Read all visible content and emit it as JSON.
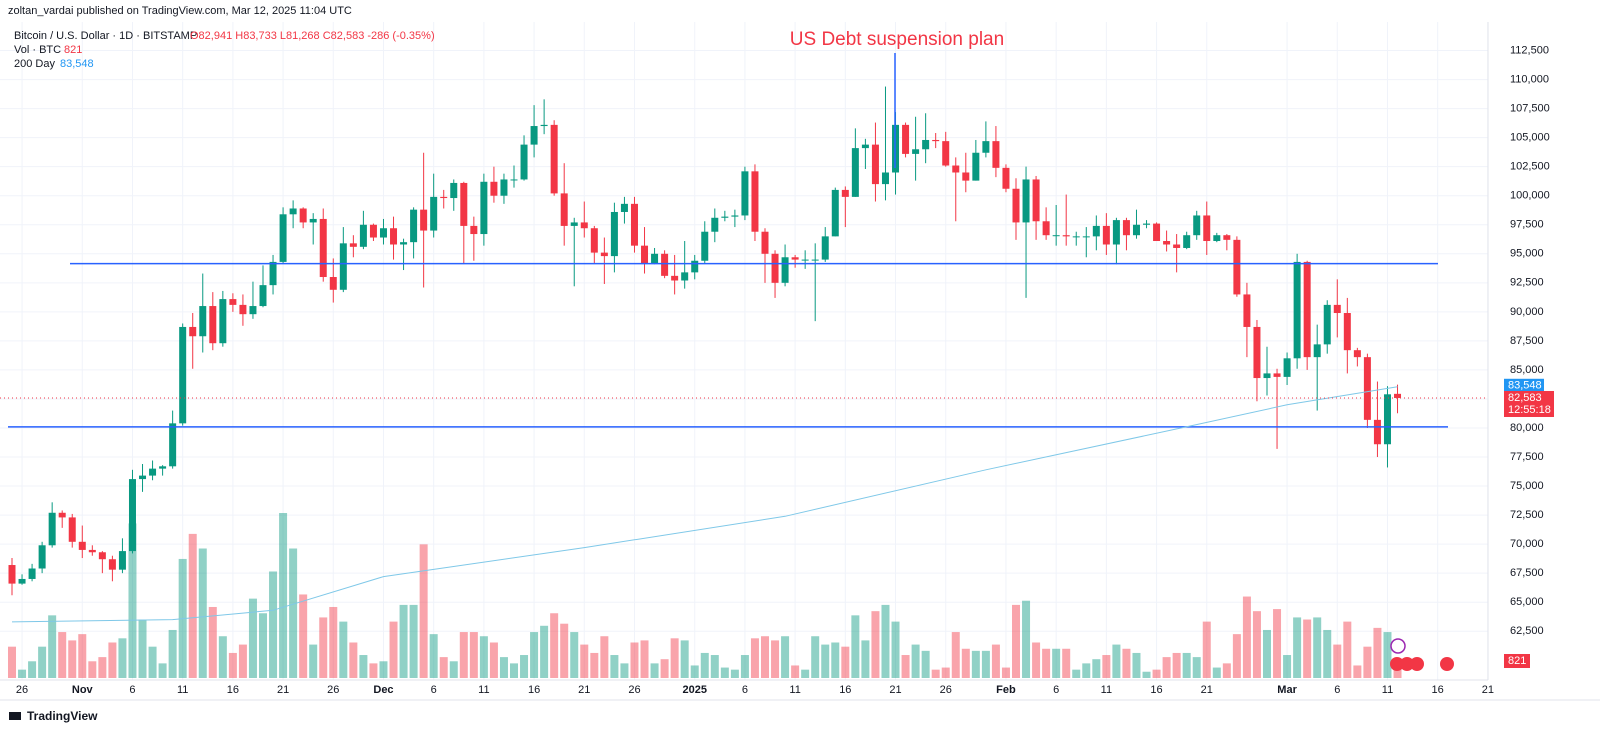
{
  "header": "zoltan_vardai published on TradingView.com, Mar 12, 2025 11:04 UTC",
  "footer": "TradingView",
  "chart_data": {
    "type": "candlestick",
    "title": "Bitcoin / U.S. Dollar · 1D · BITSTAMP",
    "ohlc_legend": "O82,941 H83,733 L81,268 C82,583 -286 (-0.35%)",
    "annotation": "US Debt suspension plan",
    "up_color": "#089981",
    "down_color": "#f23645",
    "grid": true,
    "x": [
      "2024-10-25",
      "2024-10-26",
      "2024-10-27",
      "2024-10-28",
      "2024-10-29",
      "2024-10-30",
      "2024-10-31",
      "2024-11-01",
      "2024-11-02",
      "2024-11-03",
      "2024-11-04",
      "2024-11-05",
      "2024-11-06",
      "2024-11-07",
      "2024-11-08",
      "2024-11-09",
      "2024-11-10",
      "2024-11-11",
      "2024-11-12",
      "2024-11-13",
      "2024-11-14",
      "2024-11-15",
      "2024-11-16",
      "2024-11-17",
      "2024-11-18",
      "2024-11-19",
      "2024-11-20",
      "2024-11-21",
      "2024-11-22",
      "2024-11-23",
      "2024-11-24",
      "2024-11-25",
      "2024-11-26",
      "2024-11-27",
      "2024-11-28",
      "2024-11-29",
      "2024-11-30",
      "2024-12-01",
      "2024-12-02",
      "2024-12-03",
      "2024-12-04",
      "2024-12-05",
      "2024-12-06",
      "2024-12-07",
      "2024-12-08",
      "2024-12-09",
      "2024-12-10",
      "2024-12-11",
      "2024-12-12",
      "2024-12-13",
      "2024-12-14",
      "2024-12-15",
      "2024-12-16",
      "2024-12-17",
      "2024-12-18",
      "2024-12-19",
      "2024-12-20",
      "2024-12-21",
      "2024-12-22",
      "2024-12-23",
      "2024-12-24",
      "2024-12-25",
      "2024-12-26",
      "2024-12-27",
      "2024-12-28",
      "2024-12-29",
      "2024-12-30",
      "2024-12-31",
      "2025-01-01",
      "2025-01-02",
      "2025-01-03",
      "2025-01-04",
      "2025-01-05",
      "2025-01-06",
      "2025-01-07",
      "2025-01-08",
      "2025-01-09",
      "2025-01-10",
      "2025-01-11",
      "2025-01-12",
      "2025-01-13",
      "2025-01-14",
      "2025-01-15",
      "2025-01-16",
      "2025-01-17",
      "2025-01-18",
      "2025-01-19",
      "2025-01-20",
      "2025-01-21",
      "2025-01-22",
      "2025-01-23",
      "2025-01-24",
      "2025-01-25",
      "2025-01-26",
      "2025-01-27",
      "2025-01-28",
      "2025-01-29",
      "2025-01-30",
      "2025-01-31",
      "2025-02-01",
      "2025-02-02",
      "2025-02-03",
      "2025-02-04",
      "2025-02-05",
      "2025-02-06",
      "2025-02-07",
      "2025-02-08",
      "2025-02-09",
      "2025-02-10",
      "2025-02-11",
      "2025-02-12",
      "2025-02-13",
      "2025-02-14",
      "2025-02-15",
      "2025-02-16",
      "2025-02-17",
      "2025-02-18",
      "2025-02-19",
      "2025-02-20",
      "2025-02-21",
      "2025-02-22",
      "2025-02-23",
      "2025-02-24",
      "2025-02-25",
      "2025-02-26",
      "2025-02-27",
      "2025-02-28",
      "2025-03-01",
      "2025-03-02",
      "2025-03-03",
      "2025-03-04",
      "2025-03-05",
      "2025-03-06",
      "2025-03-07",
      "2025-03-08",
      "2025-03-09",
      "2025-03-10",
      "2025-03-11",
      "2025-03-12"
    ],
    "ohlc": [
      [
        68200,
        68800,
        65600,
        66600
      ],
      [
        66600,
        67400,
        66500,
        67000
      ],
      [
        67000,
        68300,
        66800,
        67900
      ],
      [
        67900,
        70200,
        67500,
        69900
      ],
      [
        69900,
        73600,
        69700,
        72700
      ],
      [
        72700,
        72900,
        71400,
        72300
      ],
      [
        72300,
        72600,
        69700,
        70200
      ],
      [
        70200,
        71600,
        68800,
        69500
      ],
      [
        69500,
        69900,
        69000,
        69300
      ],
      [
        69300,
        69400,
        67500,
        68700
      ],
      [
        68700,
        69000,
        66800,
        67800
      ],
      [
        67800,
        70500,
        67500,
        69400
      ],
      [
        69400,
        76400,
        69200,
        75600
      ],
      [
        75600,
        76900,
        74500,
        75900
      ],
      [
        75900,
        77200,
        75500,
        76500
      ],
      [
        76500,
        76800,
        75900,
        76700
      ],
      [
        76700,
        81500,
        76500,
        80400
      ],
      [
        80400,
        89000,
        80200,
        88700
      ],
      [
        88700,
        89900,
        85100,
        87900
      ],
      [
        87900,
        93300,
        86500,
        90500
      ],
      [
        90500,
        91700,
        86700,
        87300
      ],
      [
        87300,
        91800,
        87000,
        91100
      ],
      [
        91100,
        91600,
        90000,
        90600
      ],
      [
        90600,
        91500,
        88800,
        89800
      ],
      [
        89800,
        92600,
        89400,
        90500
      ],
      [
        90500,
        94000,
        90400,
        92300
      ],
      [
        92300,
        94900,
        91500,
        94300
      ],
      [
        94300,
        99000,
        94200,
        98400
      ],
      [
        98400,
        99600,
        97200,
        98900
      ],
      [
        98900,
        99000,
        97200,
        97700
      ],
      [
        97700,
        98500,
        95800,
        98000
      ],
      [
        98000,
        98900,
        92600,
        93000
      ],
      [
        93000,
        94600,
        90800,
        91900
      ],
      [
        91900,
        97300,
        91700,
        95900
      ],
      [
        95900,
        96600,
        94700,
        95600
      ],
      [
        95600,
        98700,
        95400,
        97500
      ],
      [
        97500,
        97600,
        96100,
        96400
      ],
      [
        96400,
        98000,
        95800,
        97200
      ],
      [
        97200,
        98200,
        94500,
        95800
      ],
      [
        95800,
        96300,
        93600,
        96000
      ],
      [
        96000,
        99000,
        94600,
        98800
      ],
      [
        98800,
        103700,
        92100,
        97000
      ],
      [
        97000,
        101900,
        96400,
        99900
      ],
      [
        99900,
        100500,
        98900,
        99800
      ],
      [
        99800,
        101400,
        98700,
        101100
      ],
      [
        101100,
        101200,
        94200,
        97400
      ],
      [
        97400,
        98200,
        94400,
        96700
      ],
      [
        96700,
        101900,
        95700,
        101200
      ],
      [
        101200,
        102500,
        99400,
        100000
      ],
      [
        100000,
        101900,
        99300,
        101400
      ],
      [
        101400,
        102600,
        100700,
        101400
      ],
      [
        101400,
        105200,
        101300,
        104400
      ],
      [
        104400,
        107800,
        103300,
        106000
      ],
      [
        106000,
        108300,
        105300,
        106100
      ],
      [
        106100,
        106500,
        100000,
        100200
      ],
      [
        100200,
        102800,
        95700,
        97400
      ],
      [
        97400,
        98100,
        92200,
        97700
      ],
      [
        97700,
        99500,
        96400,
        97200
      ],
      [
        97200,
        97400,
        94200,
        95100
      ],
      [
        95100,
        96400,
        92400,
        94800
      ],
      [
        94800,
        99400,
        93400,
        98600
      ],
      [
        98600,
        99900,
        97600,
        99300
      ],
      [
        99300,
        99900,
        95100,
        95700
      ],
      [
        95700,
        97300,
        93300,
        94200
      ],
      [
        94200,
        95500,
        94100,
        95000
      ],
      [
        95000,
        95300,
        92900,
        93100
      ],
      [
        93100,
        94900,
        91500,
        92700
      ],
      [
        92700,
        96100,
        92000,
        93400
      ],
      [
        93400,
        94900,
        92800,
        94400
      ],
      [
        94400,
        97800,
        94200,
        96900
      ],
      [
        96900,
        98900,
        96000,
        98100
      ],
      [
        98100,
        98700,
        97800,
        98200
      ],
      [
        98200,
        98800,
        97300,
        98300
      ],
      [
        98300,
        102500,
        97900,
        102100
      ],
      [
        102100,
        102700,
        96100,
        96900
      ],
      [
        96900,
        97200,
        92500,
        95000
      ],
      [
        95000,
        95300,
        91200,
        92500
      ],
      [
        92500,
        95800,
        92200,
        94700
      ],
      [
        94700,
        94900,
        93800,
        94500
      ],
      [
        94500,
        95300,
        93700,
        94500
      ],
      [
        94500,
        95900,
        89200,
        94500
      ],
      [
        94500,
        97300,
        94300,
        96500
      ],
      [
        96500,
        100700,
        96500,
        100500
      ],
      [
        100500,
        100800,
        97300,
        99900
      ],
      [
        99900,
        105800,
        99900,
        104100
      ],
      [
        104100,
        104900,
        102300,
        104400
      ],
      [
        104400,
        106300,
        99500,
        101000
      ],
      [
        101000,
        109400,
        99600,
        102000
      ],
      [
        102000,
        107200,
        100100,
        106100
      ],
      [
        106100,
        106300,
        103300,
        103600
      ],
      [
        103600,
        106800,
        101300,
        104000
      ],
      [
        104000,
        107100,
        102800,
        104800
      ],
      [
        104800,
        105400,
        104100,
        104700
      ],
      [
        104700,
        105500,
        102500,
        102600
      ],
      [
        102600,
        103300,
        97800,
        102000
      ],
      [
        102000,
        103700,
        100300,
        101300
      ],
      [
        101300,
        104800,
        101300,
        103700
      ],
      [
        103700,
        106400,
        103300,
        104700
      ],
      [
        104700,
        106000,
        101600,
        102400
      ],
      [
        102400,
        102700,
        100300,
        100600
      ],
      [
        100600,
        101500,
        96200,
        97700
      ],
      [
        97700,
        102500,
        91200,
        101400
      ],
      [
        101400,
        101700,
        96200,
        97800
      ],
      [
        97800,
        99000,
        96200,
        96600
      ],
      [
        96600,
        99200,
        95700,
        96600
      ],
      [
        96600,
        100100,
        95700,
        96500
      ],
      [
        96500,
        96900,
        95700,
        96500
      ],
      [
        96500,
        97300,
        94700,
        96500
      ],
      [
        96500,
        98300,
        95300,
        97400
      ],
      [
        97400,
        98500,
        94900,
        95800
      ],
      [
        95800,
        98100,
        94100,
        97900
      ],
      [
        97900,
        98100,
        95300,
        96600
      ],
      [
        96600,
        98800,
        96300,
        97500
      ],
      [
        97500,
        97900,
        97200,
        97600
      ],
      [
        97600,
        97700,
        96100,
        96100
      ],
      [
        96100,
        97000,
        95200,
        95800
      ],
      [
        95800,
        96700,
        93400,
        95500
      ],
      [
        95500,
        96900,
        95400,
        96600
      ],
      [
        96600,
        98700,
        96200,
        98300
      ],
      [
        98300,
        99500,
        94900,
        96100
      ],
      [
        96100,
        96800,
        96000,
        96600
      ],
      [
        96600,
        96700,
        95300,
        96200
      ],
      [
        96200,
        96500,
        91300,
        91500
      ],
      [
        91500,
        92500,
        86100,
        88700
      ],
      [
        88700,
        89300,
        82300,
        84300
      ],
      [
        84300,
        87000,
        82800,
        84700
      ],
      [
        84700,
        85100,
        78200,
        84400
      ],
      [
        84400,
        86500,
        83700,
        86000
      ],
      [
        86000,
        95000,
        85100,
        94300
      ],
      [
        94300,
        94400,
        85000,
        86100
      ],
      [
        86100,
        88900,
        81500,
        87200
      ],
      [
        87200,
        91000,
        86400,
        90600
      ],
      [
        90600,
        92800,
        87800,
        89900
      ],
      [
        89900,
        91200,
        84700,
        86700
      ],
      [
        86700,
        86900,
        85300,
        86100
      ],
      [
        86100,
        86400,
        80000,
        80700
      ],
      [
        80700,
        84000,
        77500,
        78600
      ],
      [
        78600,
        83600,
        76600,
        82900
      ],
      [
        82941,
        83733,
        81268,
        82583
      ]
    ],
    "volume_name": "Vol · BTC",
    "volume": [
      1500,
      400,
      800,
      1500,
      3000,
      2200,
      1800,
      2100,
      800,
      1000,
      1700,
      1900,
      7400,
      2800,
      1500,
      700,
      2300,
      5700,
      6900,
      6200,
      3400,
      2000,
      1200,
      1600,
      3800,
      3100,
      5100,
      7900,
      6200,
      4000,
      1600,
      2900,
      3400,
      2700,
      1700,
      1100,
      700,
      800,
      2700,
      3500,
      3500,
      6400,
      2100,
      1000,
      800,
      2200,
      2200,
      2000,
      1700,
      1000,
      700,
      1100,
      2200,
      2500,
      3100,
      2600,
      2200,
      1600,
      1200,
      2000,
      1100,
      700,
      1700,
      1800,
      700,
      900,
      1900,
      1800,
      600,
      1200,
      1100,
      500,
      400,
      1100,
      1900,
      2000,
      1800,
      2000,
      600,
      400,
      2000,
      1600,
      1700,
      1500,
      3000,
      1800,
      3200,
      3500,
      2700,
      1100,
      1600,
      1300,
      400,
      500,
      2200,
      1400,
      1300,
      1300,
      1600,
      500,
      3500,
      3700,
      1700,
      1400,
      1400,
      1400,
      400,
      700,
      900,
      1100,
      1600,
      1400,
      1200,
      300,
      400,
      1000,
      1200,
      1200,
      1000,
      2700,
      500,
      700,
      2100,
      3900,
      3200,
      2300,
      3300,
      1100,
      2900,
      2800,
      2900,
      2300,
      1600,
      2700,
      600,
      1500,
      2400,
      2200,
      821
    ],
    "ma_200": {
      "name": "200 Day",
      "value_label": "83,548",
      "color": "#7fc8e8",
      "x": [
        "2024-10-25",
        "2024-11-10",
        "2024-11-20",
        "2024-12-01",
        "2024-12-21",
        "2025-01-10",
        "2025-01-30",
        "2025-02-19",
        "2025-03-01",
        "2025-03-12"
      ],
      "values": [
        63300,
        63500,
        64300,
        67200,
        69700,
        72400,
        76400,
        80100,
        82000,
        83548
      ]
    },
    "last_price": {
      "value": 82583,
      "label": "82,583",
      "countdown": "12:55:18"
    },
    "levels": [
      94150,
      80100
    ],
    "level_color": "#2962ff",
    "ylim": [
      58300,
      114700
    ],
    "yticks": [
      {
        "value": 62500,
        "label": "62,500"
      },
      {
        "value": 65000,
        "label": "65,000"
      },
      {
        "value": 67500,
        "label": "67,500"
      },
      {
        "value": 70000,
        "label": "70,000"
      },
      {
        "value": 72500,
        "label": "72,500"
      },
      {
        "value": 75000,
        "label": "75,000"
      },
      {
        "value": 77500,
        "label": "77,500"
      },
      {
        "value": 80000,
        "label": "80,000"
      },
      {
        "value": 82500,
        "label": "82,500"
      },
      {
        "value": 85000,
        "label": "85,000"
      },
      {
        "value": 87500,
        "label": "87,500"
      },
      {
        "value": 90000,
        "label": "90,000"
      },
      {
        "value": 92500,
        "label": "92,500"
      },
      {
        "value": 95000,
        "label": "95,000"
      },
      {
        "value": 97500,
        "label": "97,500"
      },
      {
        "value": 100000,
        "label": "100,000"
      },
      {
        "value": 102500,
        "label": "102,500"
      },
      {
        "value": 105000,
        "label": "105,000"
      },
      {
        "value": 107500,
        "label": "107,500"
      },
      {
        "value": 110000,
        "label": "110,000"
      },
      {
        "value": 112500,
        "label": "112,500"
      }
    ],
    "xticks": [
      {
        "value": "2024-10-26",
        "label": "26"
      },
      {
        "value": "2024-11-01",
        "label": "Nov"
      },
      {
        "value": "2024-11-06",
        "label": "6"
      },
      {
        "value": "2024-11-11",
        "label": "11"
      },
      {
        "value": "2024-11-16",
        "label": "16"
      },
      {
        "value": "2024-11-21",
        "label": "21"
      },
      {
        "value": "2024-11-26",
        "label": "26"
      },
      {
        "value": "2024-12-01",
        "label": "Dec"
      },
      {
        "value": "2024-12-06",
        "label": "6"
      },
      {
        "value": "2024-12-11",
        "label": "11"
      },
      {
        "value": "2024-12-16",
        "label": "16"
      },
      {
        "value": "2024-12-21",
        "label": "21"
      },
      {
        "value": "2024-12-26",
        "label": "26"
      },
      {
        "value": "2025-01-01",
        "label": "2025"
      },
      {
        "value": "2025-01-06",
        "label": "6"
      },
      {
        "value": "2025-01-11",
        "label": "11"
      },
      {
        "value": "2025-01-16",
        "label": "16"
      },
      {
        "value": "2025-01-21",
        "label": "21"
      },
      {
        "value": "2025-01-26",
        "label": "26"
      },
      {
        "value": "2025-02-01",
        "label": "Feb"
      },
      {
        "value": "2025-02-06",
        "label": "6"
      },
      {
        "value": "2025-02-11",
        "label": "11"
      },
      {
        "value": "2025-02-16",
        "label": "16"
      },
      {
        "value": "2025-02-21",
        "label": "21"
      },
      {
        "value": "2025-03-01",
        "label": "Mar"
      },
      {
        "value": "2025-03-06",
        "label": "6"
      },
      {
        "value": "2025-03-11",
        "label": "11"
      },
      {
        "value": "2025-03-16",
        "label": "16"
      },
      {
        "value": "2025-03-21",
        "label": "21"
      }
    ]
  }
}
